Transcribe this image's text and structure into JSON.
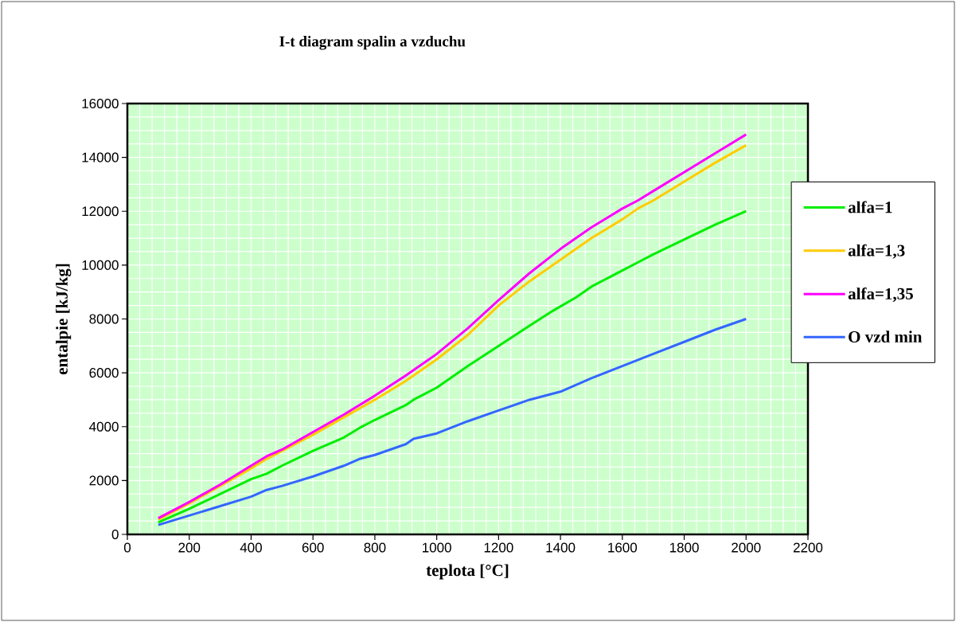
{
  "chart_data": {
    "type": "line",
    "title": "I-t diagram  spalin a vzduchu",
    "xlabel": "teplota [°C]",
    "ylabel": "entalpie [kJ/kg]",
    "xlim": [
      0,
      2200
    ],
    "xticks": [
      0,
      200,
      400,
      600,
      800,
      1000,
      1200,
      1400,
      1600,
      1800,
      2000,
      2200
    ],
    "ylim": [
      0,
      16000
    ],
    "yticks": [
      0,
      2000,
      4000,
      6000,
      8000,
      10000,
      12000,
      14000,
      16000
    ],
    "grid": true,
    "legend": "right",
    "marker": "none",
    "line_style": "solid",
    "series": [
      {
        "name": "alfa=1",
        "color": "#00ee00",
        "x": [
          100,
          200,
          300,
          400,
          450,
          500,
          600,
          700,
          750,
          800,
          900,
          925,
          950,
          1000,
          1100,
          1200,
          1300,
          1375,
          1450,
          1500,
          1600,
          1650,
          1700,
          1800,
          1900,
          2000
        ],
        "values": [
          450,
          950,
          1500,
          2050,
          2250,
          2550,
          3100,
          3600,
          3950,
          4250,
          4800,
          5000,
          5150,
          5450,
          6250,
          7000,
          7750,
          8300,
          8800,
          9200,
          9800,
          10100,
          10400,
          10950,
          11500,
          12000
        ]
      },
      {
        "name": "alfa=1,3",
        "color": "#ffcc00",
        "x": [
          100,
          200,
          300,
          400,
          450,
          500,
          600,
          700,
          800,
          900,
          925,
          950,
          1000,
          1100,
          1200,
          1300,
          1400,
          1500,
          1600,
          1650,
          1700,
          1800,
          1900,
          2000
        ],
        "values": [
          550,
          1150,
          1800,
          2450,
          2800,
          3100,
          3700,
          4350,
          5000,
          5700,
          5900,
          6100,
          6500,
          7400,
          8500,
          9400,
          10200,
          11000,
          11700,
          12100,
          12400,
          13100,
          13800,
          14450
        ]
      },
      {
        "name": "alfa=1,35",
        "color": "#ff00ff",
        "x": [
          100,
          200,
          300,
          400,
          450,
          500,
          600,
          700,
          800,
          900,
          950,
          1000,
          1100,
          1200,
          1300,
          1400,
          1450,
          1500,
          1600,
          1650,
          1700,
          1800,
          1900,
          2000
        ],
        "values": [
          600,
          1200,
          1850,
          2550,
          2900,
          3150,
          3800,
          4450,
          5150,
          5900,
          6300,
          6700,
          7650,
          8700,
          9700,
          10600,
          11000,
          11400,
          12100,
          12400,
          12750,
          13450,
          14150,
          14850
        ]
      },
      {
        "name": "O vzd min",
        "color": "#3366ff",
        "x": [
          100,
          200,
          300,
          400,
          450,
          500,
          600,
          700,
          750,
          800,
          900,
          925,
          1000,
          1100,
          1200,
          1300,
          1400,
          1500,
          1600,
          1700,
          1800,
          1900,
          2000
        ],
        "values": [
          350,
          700,
          1050,
          1400,
          1650,
          1800,
          2150,
          2550,
          2800,
          2950,
          3350,
          3550,
          3750,
          4200,
          4600,
          5000,
          5300,
          5800,
          6250,
          6700,
          7150,
          7600,
          8000
        ]
      }
    ]
  }
}
